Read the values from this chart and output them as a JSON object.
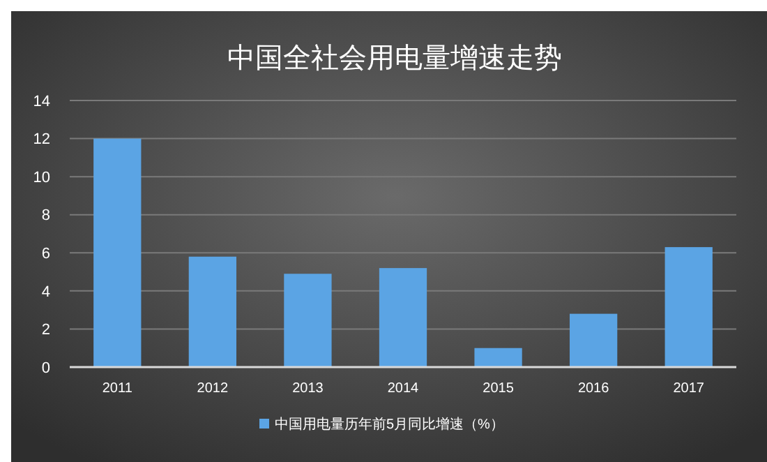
{
  "chart_data": {
    "type": "bar",
    "title": "中国全社会用电量增速走势",
    "categories": [
      "2011",
      "2012",
      "2013",
      "2014",
      "2015",
      "2016",
      "2017"
    ],
    "series": [
      {
        "name": "中国用电量历年前5月同比增速（%）",
        "color": "#5ba4e4",
        "values": [
          12,
          5.8,
          4.9,
          5.2,
          1.0,
          2.8,
          6.3
        ]
      }
    ],
    "ylim": [
      0,
      14
    ],
    "yticks": [
      0,
      2,
      4,
      6,
      8,
      10,
      12,
      14
    ],
    "grid": "y",
    "legend": "bottom"
  }
}
